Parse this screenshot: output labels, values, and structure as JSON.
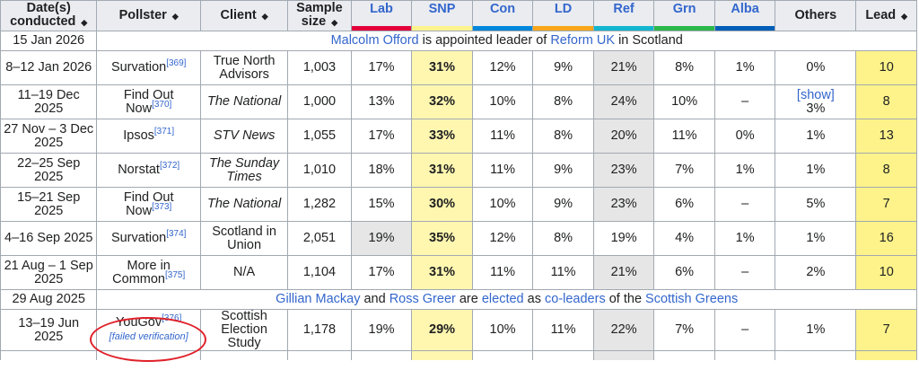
{
  "headers": {
    "date": "Date(s) conducted",
    "pollster": "Pollster",
    "client": "Client",
    "sample": "Sample size",
    "lab": "Lab",
    "snp": "SNP",
    "con": "Con",
    "ld": "LD",
    "ref": "Ref",
    "grn": "Grn",
    "alba": "Alba",
    "others": "Others",
    "lead": "Lead"
  },
  "party_colors": {
    "lab": "#e4003b",
    "snp": "#fdf38e",
    "con": "#0087dc",
    "ld": "#faa61a",
    "ref": "#12b6cf",
    "grn": "#2ab84b",
    "alba": "#005eb8"
  },
  "event1": {
    "date": "15 Jan 2026",
    "name1": "Malcolm Offord",
    "t1": " is appointed leader of ",
    "name2": "Reform UK",
    "t2": " in Scotland"
  },
  "event2": {
    "date": "29 Aug 2025",
    "name1": "Gillian Mackay",
    "t1": " and ",
    "name2": "Ross Greer",
    "t2": " are ",
    "link3": "elected",
    "t3": " as ",
    "link4": "co-leaders",
    "t4": " of the ",
    "link5": "Scottish Greens"
  },
  "rows": [
    {
      "date": "8–12 Jan 2026",
      "pollster": "Survation",
      "ref_note": "[369]",
      "client": "True North Advisors",
      "sample": "1,003",
      "lab": "17%",
      "snp": "31%",
      "con": "12%",
      "ld": "9%",
      "ref": "21%",
      "grn": "8%",
      "alba": "1%",
      "others": "0%",
      "lead": "10"
    },
    {
      "date": "11–19 Dec 2025",
      "pollster": "Find Out Now",
      "ref_note": "[370]",
      "client": "The National",
      "sample": "1,000",
      "lab": "13%",
      "snp": "32%",
      "con": "10%",
      "ld": "8%",
      "ref": "24%",
      "grn": "10%",
      "alba": "–",
      "others_show": "[show]",
      "others": "3%",
      "lead": "8"
    },
    {
      "date": "27 Nov – 3 Dec 2025",
      "pollster": "Ipsos",
      "ref_note": "[371]",
      "client": "STV News",
      "sample": "1,055",
      "lab": "17%",
      "snp": "33%",
      "con": "11%",
      "ld": "8%",
      "ref": "20%",
      "grn": "11%",
      "alba": "0%",
      "others": "1%",
      "lead": "13"
    },
    {
      "date": "22–25 Sep 2025",
      "pollster": "Norstat",
      "ref_note": "[372]",
      "client": "The Sunday Times",
      "sample": "1,010",
      "lab": "18%",
      "snp": "31%",
      "con": "11%",
      "ld": "9%",
      "ref": "23%",
      "grn": "7%",
      "alba": "1%",
      "others": "1%",
      "lead": "8"
    },
    {
      "date": "15–21 Sep 2025",
      "pollster": "Find Out Now",
      "ref_note": "[373]",
      "client": "The National",
      "sample": "1,282",
      "lab": "15%",
      "snp": "30%",
      "con": "10%",
      "ld": "9%",
      "ref": "23%",
      "grn": "6%",
      "alba": "–",
      "others": "5%",
      "lead": "7"
    },
    {
      "date": "4–16 Sep 2025",
      "pollster": "Survation",
      "ref_note": "[374]",
      "client": "Scotland in Union",
      "sample": "2,051",
      "lab": "19%",
      "snp": "35%",
      "con": "12%",
      "ld": "8%",
      "ref": "19%",
      "grn": "4%",
      "alba": "1%",
      "others": "1%",
      "lead": "16"
    },
    {
      "date": "21 Aug – 1 Sep 2025",
      "pollster": "More in Common",
      "ref_note": "[375]",
      "client": "N/A",
      "sample": "1,104",
      "lab": "17%",
      "snp": "31%",
      "con": "11%",
      "ld": "11%",
      "ref": "21%",
      "grn": "6%",
      "alba": "–",
      "others": "2%",
      "lead": "10"
    },
    {
      "date": "13–19 Jun 2025",
      "pollster": "YouGov",
      "ref_note": "[376]",
      "failed": "[failed verification]",
      "client": "Scottish Election Study",
      "sample": "1,178",
      "lab": "19%",
      "snp": "29%",
      "con": "10%",
      "ld": "11%",
      "ref": "22%",
      "grn": "7%",
      "alba": "–",
      "others": "1%",
      "lead": "7"
    }
  ]
}
